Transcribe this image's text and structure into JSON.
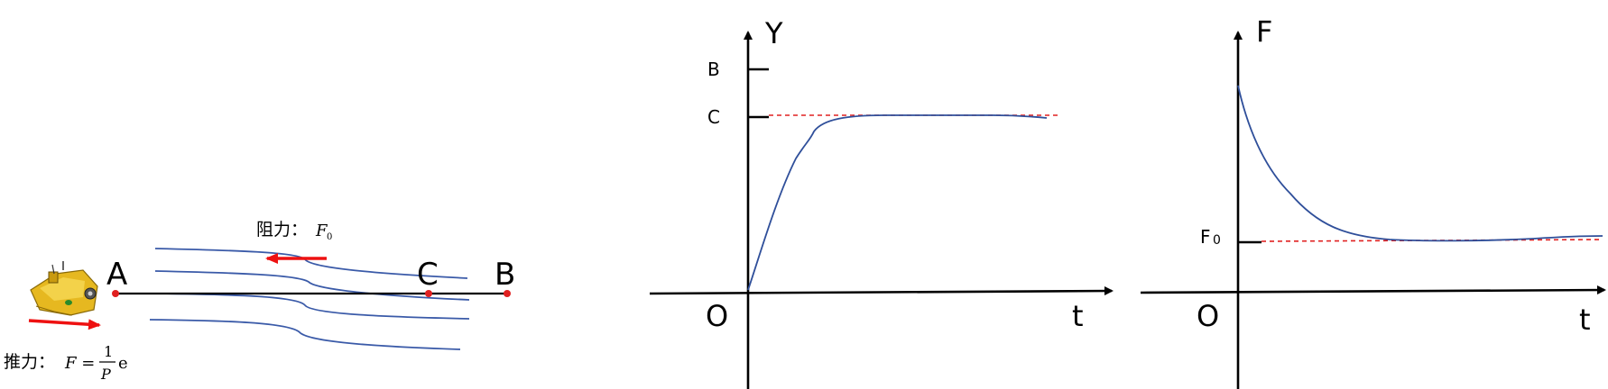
{
  "left_panel": {
    "point_a": "A",
    "point_c": "C",
    "point_b": "B",
    "resistance_label": "阻力：",
    "resistance_symbol": "F",
    "resistance_subscript": "0",
    "thrust_label": "推力：",
    "thrust_formula_lhs": "F =",
    "thrust_numerator": "1",
    "thrust_denominator": "P",
    "thrust_suffix": "e",
    "colors": {
      "arrow": "#ee1111",
      "flow_lines": "#3a5aa8",
      "boat": "#e6b820"
    },
    "icons": [
      "robot-boat-icon"
    ]
  },
  "middle_chart": {
    "y_axis_label": "Y",
    "x_axis_label": "t",
    "origin_label": "O",
    "tick_b_label": "B",
    "tick_c_label": "C",
    "colors": {
      "curve": "#2f4f9a",
      "asymptote": "#e02020"
    }
  },
  "right_chart": {
    "y_axis_label": "F",
    "x_axis_label": "t",
    "origin_label": "O",
    "tick_f0_label": "F",
    "tick_f0_subscript": "0",
    "colors": {
      "curve": "#2f4f9a",
      "asymptote": "#e02020"
    }
  }
}
